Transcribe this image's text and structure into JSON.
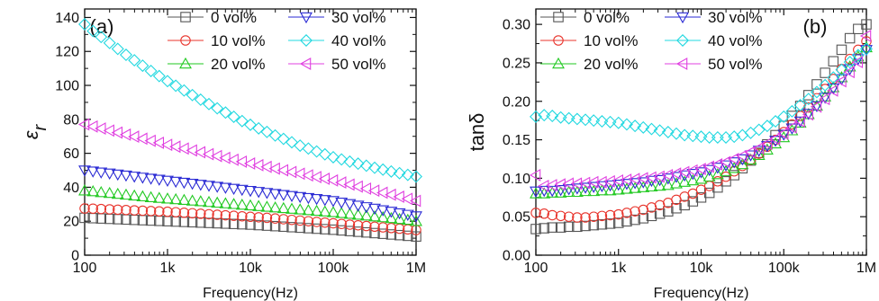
{
  "chart_data": [
    {
      "type": "scatter",
      "panel_label": "(a)",
      "xlabel": "Frequency(Hz)",
      "ylabel": "ε",
      "ylabel_sub": "r",
      "x_scale": "log",
      "xlim": [
        100,
        1000000
      ],
      "x_ticks": [
        100,
        1000,
        10000,
        100000,
        1000000
      ],
      "x_tick_labels": [
        "100",
        "1k",
        "10k",
        "100k",
        "1M"
      ],
      "ylim": [
        0,
        145
      ],
      "y_ticks": [
        0,
        20,
        40,
        60,
        80,
        100,
        120,
        140
      ],
      "y_tick_labels": [
        "0",
        "20",
        "40",
        "60",
        "80",
        "100",
        "120",
        "140"
      ],
      "legend_position": "top-right",
      "x": [
        100,
        126,
        158,
        200,
        251,
        316,
        398,
        501,
        631,
        794,
        1000,
        1259,
        1585,
        1995,
        2512,
        3162,
        3981,
        5012,
        6310,
        7943,
        10000,
        12589,
        15849,
        19953,
        25119,
        31623,
        39811,
        50119,
        63096,
        79433,
        100000,
        125893,
        158489,
        199526,
        251189,
        316228,
        398107,
        501187,
        630957,
        794328,
        1000000
      ],
      "series": [
        {
          "name": "0 vol%",
          "marker": "square",
          "color": "#555555",
          "values": [
            22.0,
            21.8,
            21.6,
            21.4,
            21.2,
            21.0,
            20.8,
            20.6,
            20.4,
            20.2,
            20.0,
            19.8,
            19.6,
            19.4,
            19.2,
            19.0,
            18.8,
            18.6,
            18.4,
            18.2,
            18.0,
            17.7,
            17.4,
            17.1,
            16.8,
            16.5,
            16.2,
            15.9,
            15.6,
            15.3,
            15.0,
            14.6,
            14.2,
            13.8,
            13.4,
            13.0,
            12.6,
            12.2,
            11.8,
            11.4,
            11.0
          ]
        },
        {
          "name": "10 vol%",
          "marker": "circle",
          "color": "#e8342c",
          "values": [
            27.5,
            27.4,
            27.2,
            27.0,
            26.8,
            26.6,
            26.4,
            26.2,
            26.0,
            25.8,
            25.6,
            25.3,
            25.0,
            24.7,
            24.4,
            24.1,
            23.8,
            23.5,
            23.2,
            22.9,
            22.6,
            22.3,
            22.0,
            21.6,
            21.2,
            20.8,
            20.4,
            20.0,
            19.6,
            19.2,
            18.8,
            18.4,
            18.0,
            17.6,
            17.2,
            16.8,
            16.4,
            16.0,
            15.6,
            15.2,
            14.8
          ]
        },
        {
          "name": "20 vol%",
          "marker": "triangle-up",
          "color": "#22c922",
          "values": [
            38.0,
            37.5,
            37.0,
            36.5,
            36.0,
            35.5,
            35.0,
            34.5,
            34.0,
            33.6,
            33.2,
            32.8,
            32.4,
            32.0,
            31.6,
            31.2,
            30.8,
            30.4,
            30.0,
            29.6,
            29.2,
            28.8,
            28.4,
            28.0,
            27.6,
            27.2,
            26.8,
            26.4,
            26.0,
            25.6,
            25.2,
            24.7,
            24.2,
            23.7,
            23.2,
            22.7,
            22.2,
            21.7,
            21.2,
            20.7,
            20.0
          ]
        },
        {
          "name": "30 vol%",
          "marker": "triangle-down",
          "color": "#2a2ad4",
          "values": [
            50.0,
            49.4,
            48.8,
            48.2,
            47.6,
            47.0,
            46.4,
            45.8,
            45.2,
            44.6,
            44.0,
            43.4,
            42.8,
            42.2,
            41.6,
            41.0,
            40.4,
            39.8,
            39.2,
            38.6,
            38.0,
            37.4,
            36.8,
            36.2,
            35.6,
            35.0,
            34.4,
            33.8,
            33.2,
            32.6,
            32.0,
            31.1,
            30.2,
            29.3,
            28.4,
            27.5,
            26.6,
            25.7,
            24.8,
            23.9,
            23.0
          ]
        },
        {
          "name": "40 vol%",
          "marker": "diamond",
          "color": "#22d8e0",
          "values": [
            136.0,
            132.0,
            128.5,
            125.0,
            121.5,
            118.0,
            114.8,
            111.6,
            108.5,
            105.5,
            102.5,
            99.8,
            97.0,
            94.3,
            91.6,
            89.0,
            86.5,
            84.0,
            81.5,
            79.0,
            76.8,
            74.7,
            72.6,
            70.5,
            68.5,
            66.5,
            64.5,
            62.8,
            61.1,
            59.4,
            57.7,
            56.4,
            55.1,
            53.9,
            52.7,
            51.5,
            50.4,
            49.3,
            48.3,
            47.3,
            46.3
          ]
        },
        {
          "name": "50 vol%",
          "marker": "triangle-left",
          "color": "#e040e0",
          "values": [
            77.0,
            75.8,
            74.6,
            73.4,
            72.2,
            71.0,
            69.8,
            68.6,
            67.4,
            66.2,
            65.0,
            63.9,
            62.8,
            61.7,
            60.6,
            59.5,
            58.4,
            57.3,
            56.2,
            55.1,
            54.0,
            53.0,
            52.0,
            51.0,
            50.0,
            49.0,
            48.0,
            47.0,
            46.0,
            45.0,
            44.0,
            42.8,
            41.6,
            40.4,
            39.2,
            38.0,
            36.8,
            35.6,
            34.4,
            33.2,
            32.0
          ]
        }
      ]
    },
    {
      "type": "scatter",
      "panel_label": "(b)",
      "xlabel": "Frequency(Hz)",
      "ylabel": "tanδ",
      "x_scale": "log",
      "xlim": [
        100,
        1000000
      ],
      "x_ticks": [
        100,
        1000,
        10000,
        100000,
        1000000
      ],
      "x_tick_labels": [
        "100",
        "1k",
        "10k",
        "100k",
        "1M"
      ],
      "ylim": [
        0.0,
        0.32
      ],
      "y_ticks": [
        0.0,
        0.05,
        0.1,
        0.15,
        0.2,
        0.25,
        0.3
      ],
      "y_tick_labels": [
        "0.00",
        "0.05",
        "0.10",
        "0.15",
        "0.20",
        "0.25",
        "0.30"
      ],
      "legend_position": "top-left",
      "x": [
        100,
        126,
        158,
        200,
        251,
        316,
        398,
        501,
        631,
        794,
        1000,
        1259,
        1585,
        1995,
        2512,
        3162,
        3981,
        5012,
        6310,
        7943,
        10000,
        12589,
        15849,
        19953,
        25119,
        31623,
        39811,
        50119,
        63096,
        79433,
        100000,
        125893,
        158489,
        199526,
        251189,
        316228,
        398107,
        501187,
        630957,
        794328,
        1000000
      ],
      "series": [
        {
          "name": "0 vol%",
          "marker": "square",
          "color": "#555555",
          "values": [
            0.034,
            0.035,
            0.036,
            0.036,
            0.037,
            0.037,
            0.038,
            0.039,
            0.04,
            0.041,
            0.042,
            0.044,
            0.046,
            0.048,
            0.051,
            0.054,
            0.057,
            0.061,
            0.065,
            0.07,
            0.075,
            0.081,
            0.088,
            0.096,
            0.104,
            0.113,
            0.123,
            0.133,
            0.144,
            0.156,
            0.168,
            0.181,
            0.194,
            0.208,
            0.222,
            0.237,
            0.252,
            0.267,
            0.282,
            0.294,
            0.3
          ]
        },
        {
          "name": "10 vol%",
          "marker": "circle",
          "color": "#e8342c",
          "values": [
            0.055,
            0.054,
            0.052,
            0.051,
            0.05,
            0.049,
            0.049,
            0.05,
            0.051,
            0.052,
            0.053,
            0.055,
            0.057,
            0.059,
            0.062,
            0.065,
            0.068,
            0.072,
            0.076,
            0.08,
            0.085,
            0.09,
            0.096,
            0.102,
            0.109,
            0.116,
            0.124,
            0.132,
            0.141,
            0.15,
            0.16,
            0.17,
            0.181,
            0.192,
            0.204,
            0.216,
            0.229,
            0.242,
            0.255,
            0.267,
            0.278
          ]
        },
        {
          "name": "20 vol%",
          "marker": "triangle-up",
          "color": "#22c922",
          "values": [
            0.08,
            0.08,
            0.081,
            0.081,
            0.082,
            0.082,
            0.083,
            0.083,
            0.084,
            0.084,
            0.085,
            0.086,
            0.087,
            0.088,
            0.089,
            0.09,
            0.091,
            0.093,
            0.095,
            0.097,
            0.099,
            0.102,
            0.105,
            0.109,
            0.113,
            0.118,
            0.124,
            0.13,
            0.137,
            0.145,
            0.153,
            0.162,
            0.172,
            0.183,
            0.194,
            0.206,
            0.218,
            0.231,
            0.245,
            0.258,
            0.27
          ]
        },
        {
          "name": "30 vol%",
          "marker": "triangle-down",
          "color": "#2a2ad4",
          "values": [
            0.083,
            0.084,
            0.084,
            0.085,
            0.086,
            0.087,
            0.088,
            0.089,
            0.09,
            0.091,
            0.092,
            0.093,
            0.094,
            0.095,
            0.097,
            0.098,
            0.1,
            0.102,
            0.104,
            0.106,
            0.108,
            0.111,
            0.114,
            0.117,
            0.121,
            0.125,
            0.13,
            0.136,
            0.142,
            0.149,
            0.157,
            0.165,
            0.174,
            0.184,
            0.194,
            0.205,
            0.217,
            0.229,
            0.242,
            0.255,
            0.267
          ]
        },
        {
          "name": "40 vol%",
          "marker": "diamond",
          "color": "#22d8e0",
          "values": [
            0.18,
            0.182,
            0.181,
            0.179,
            0.178,
            0.177,
            0.176,
            0.175,
            0.174,
            0.173,
            0.172,
            0.17,
            0.168,
            0.166,
            0.164,
            0.162,
            0.16,
            0.158,
            0.156,
            0.155,
            0.154,
            0.153,
            0.153,
            0.153,
            0.154,
            0.156,
            0.159,
            0.163,
            0.168,
            0.174,
            0.18,
            0.187,
            0.195,
            0.203,
            0.212,
            0.221,
            0.231,
            0.241,
            0.251,
            0.26,
            0.268
          ]
        },
        {
          "name": "50 vol%",
          "marker": "triangle-left",
          "color": "#e040e0",
          "values": [
            0.104,
            0.09,
            0.091,
            0.092,
            0.093,
            0.093,
            0.094,
            0.095,
            0.095,
            0.096,
            0.097,
            0.098,
            0.099,
            0.1,
            0.101,
            0.102,
            0.104,
            0.106,
            0.108,
            0.11,
            0.112,
            0.115,
            0.118,
            0.121,
            0.125,
            0.129,
            0.134,
            0.139,
            0.145,
            0.151,
            0.158,
            0.166,
            0.174,
            0.183,
            0.193,
            0.203,
            0.214,
            0.226,
            0.238,
            0.251,
            0.285
          ]
        }
      ]
    }
  ]
}
